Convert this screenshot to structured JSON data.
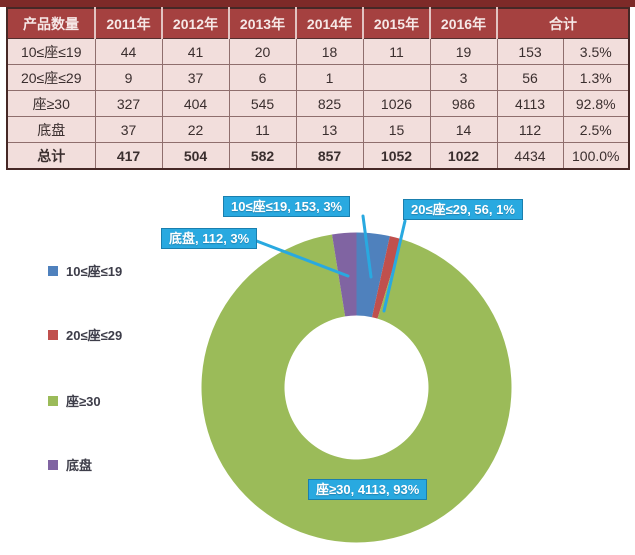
{
  "accent": {
    "bar_color": "#7d2a28",
    "header_bg": "#a54140",
    "body_bg": "#f2dedc",
    "callout_bg": "#29a9e0"
  },
  "table": {
    "header": [
      "产品数量",
      "2011年",
      "2012年",
      "2013年",
      "2014年",
      "2015年",
      "2016年",
      "合计"
    ],
    "rows": [
      {
        "label": "10≤座≤19",
        "values": [
          "44",
          "41",
          "20",
          "18",
          "11",
          "19",
          "153",
          "3.5%"
        ]
      },
      {
        "label": "20≤座≤29",
        "values": [
          "9",
          "37",
          "6",
          "1",
          "",
          "3",
          "56",
          "1.3%"
        ]
      },
      {
        "label": "座≥30",
        "values": [
          "327",
          "404",
          "545",
          "825",
          "1026",
          "986",
          "4113",
          "92.8%"
        ]
      },
      {
        "label": "底盘",
        "values": [
          "37",
          "22",
          "11",
          "13",
          "15",
          "14",
          "112",
          "2.5%"
        ]
      },
      {
        "label": "总计",
        "values": [
          "417",
          "504",
          "582",
          "857",
          "1052",
          "1022",
          "4434",
          "100.0%"
        ]
      }
    ]
  },
  "chart_data": {
    "type": "pie",
    "subtype": "donut",
    "categories": [
      "10≤座≤19",
      "20≤座≤29",
      "座≥30",
      "底盘"
    ],
    "values": [
      153,
      56,
      4113,
      112
    ],
    "total": 4434,
    "percents": [
      "3%",
      "1%",
      "93%",
      "3%"
    ],
    "data_labels": [
      "10≤座≤19, 153, 3%",
      "20≤座≤29, 56, 1%",
      "座≥30, 4113, 93%",
      "底盘, 112, 3%"
    ],
    "colors": [
      "#4F81BD",
      "#C0504D",
      "#9BBB59",
      "#8064A2"
    ],
    "start_angle_deg": 0,
    "direction": "clockwise",
    "legend_position": "left",
    "callout_color": "#29a9e0"
  }
}
